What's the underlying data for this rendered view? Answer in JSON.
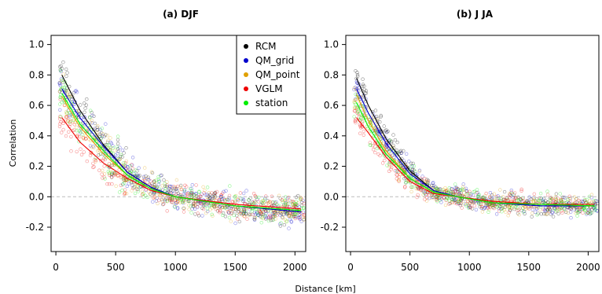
{
  "chart_data": [
    {
      "type": "scatter",
      "title": "(a) DJF",
      "xlabel": "",
      "ylabel": "Correlation",
      "xlim": [
        -40,
        2090
      ],
      "ylim": [
        -0.36,
        1.06
      ],
      "xticks": [
        "0",
        "500",
        "1000",
        "1500",
        "2000"
      ],
      "yticks": [
        "-0.2",
        "0.0",
        "0.2",
        "0.4",
        "0.6",
        "0.8",
        "1.0"
      ],
      "reference_line": {
        "y": 0.0,
        "style": "dashed",
        "color": "#bbbbbb"
      },
      "legend_position": "top-right",
      "series": [
        {
          "name": "RCM",
          "color": "#000000",
          "curve": {
            "x": [
              50,
              200,
              400,
              600,
              800,
              1000,
              1500,
              2050
            ],
            "y": [
              0.8,
              0.57,
              0.34,
              0.16,
              0.06,
              0.0,
              -0.06,
              -0.1
            ]
          }
        },
        {
          "name": "QM_grid",
          "color": "#0000cc",
          "curve": {
            "x": [
              50,
              200,
              400,
              600,
              800,
              1000,
              1500,
              2050
            ],
            "y": [
              0.71,
              0.52,
              0.33,
              0.16,
              0.06,
              0.0,
              -0.06,
              -0.1
            ]
          }
        },
        {
          "name": "QM_point",
          "color": "#e0a000",
          "curve": {
            "x": [
              50,
              200,
              400,
              600,
              800,
              1000,
              1500,
              2050
            ],
            "y": [
              0.66,
              0.46,
              0.28,
              0.14,
              0.05,
              0.0,
              -0.06,
              -0.09
            ]
          }
        },
        {
          "name": "VGLM",
          "color": "#ee0000",
          "curve": {
            "x": [
              50,
              200,
              400,
              600,
              800,
              1000,
              1500,
              2050
            ],
            "y": [
              0.52,
              0.36,
              0.22,
              0.12,
              0.04,
              0.0,
              -0.05,
              -0.08
            ]
          }
        },
        {
          "name": "station",
          "color": "#00ee00",
          "curve": {
            "x": [
              50,
              200,
              400,
              600,
              800,
              1000,
              1500,
              2050
            ],
            "y": [
              0.68,
              0.48,
              0.3,
              0.14,
              0.05,
              0.0,
              -0.06,
              -0.09
            ]
          }
        }
      ]
    },
    {
      "type": "scatter",
      "title": "(b) J JA",
      "xlabel": "",
      "ylabel": "",
      "xlim": [
        -40,
        2090
      ],
      "ylim": [
        -0.36,
        1.06
      ],
      "xticks": [
        "0",
        "500",
        "1000",
        "1500",
        "2000"
      ],
      "yticks": [
        "-0.2",
        "0.0",
        "0.2",
        "0.4",
        "0.6",
        "0.8",
        "1.0"
      ],
      "reference_line": {
        "y": 0.0,
        "style": "dashed",
        "color": "#bbbbbb"
      },
      "series": [
        {
          "name": "RCM",
          "color": "#000000",
          "curve": {
            "x": [
              50,
              150,
              300,
              500,
              700,
              900,
              1200,
              1600,
              2050
            ],
            "y": [
              0.78,
              0.6,
              0.38,
              0.17,
              0.04,
              0.0,
              -0.04,
              -0.06,
              -0.06
            ]
          }
        },
        {
          "name": "QM_grid",
          "color": "#0000cc",
          "curve": {
            "x": [
              50,
              150,
              300,
              500,
              700,
              900,
              1200,
              1600,
              2050
            ],
            "y": [
              0.71,
              0.55,
              0.35,
              0.15,
              0.04,
              0.0,
              -0.04,
              -0.06,
              -0.06
            ]
          }
        },
        {
          "name": "QM_point",
          "color": "#e0a000",
          "curve": {
            "x": [
              50,
              150,
              300,
              500,
              700,
              900,
              1200,
              1600,
              2050
            ],
            "y": [
              0.67,
              0.5,
              0.3,
              0.12,
              0.03,
              0.0,
              -0.04,
              -0.05,
              -0.06
            ]
          }
        },
        {
          "name": "VGLM",
          "color": "#ee0000",
          "curve": {
            "x": [
              50,
              150,
              300,
              500,
              700,
              900,
              1200,
              1600,
              2050
            ],
            "y": [
              0.52,
              0.42,
              0.26,
              0.1,
              0.02,
              0.0,
              -0.03,
              -0.05,
              -0.05
            ]
          }
        },
        {
          "name": "station",
          "color": "#00ee00",
          "curve": {
            "x": [
              50,
              150,
              300,
              500,
              700,
              900,
              1200,
              1600,
              2050
            ],
            "y": [
              0.62,
              0.46,
              0.28,
              0.12,
              0.03,
              0.0,
              -0.04,
              -0.05,
              -0.06
            ]
          }
        }
      ]
    }
  ],
  "shared_xlabel": "Distance [km]"
}
